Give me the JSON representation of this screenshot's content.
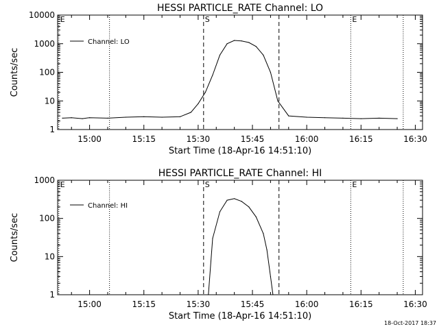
{
  "chart_data": [
    {
      "type": "line",
      "title": "HESSI PARTICLE_RATE Channel: LO",
      "xlabel": "Start Time (18-Apr-16 14:51:10)",
      "ylabel": "Counts/sec",
      "yscale": "log",
      "ylim": [
        1,
        10000
      ],
      "y_ticks": [
        "1",
        "10",
        "100",
        "1000",
        "10000"
      ],
      "xlim": [
        "14:51:10",
        "16:32:00"
      ],
      "x_ticks": [
        "15:00",
        "15:15",
        "15:30",
        "15:45",
        "16:00",
        "16:15",
        "16:30"
      ],
      "legend": {
        "position": "top-left",
        "label": "Channel: LO"
      },
      "markers": [
        {
          "time": "14:51:30",
          "label": "E",
          "style": "dotted"
        },
        {
          "time": "15:05:30",
          "label": "",
          "style": "dotted"
        },
        {
          "time": "15:31:30",
          "label": "S",
          "style": "dashed"
        },
        {
          "time": "15:52:20",
          "label": "",
          "style": "dashed"
        },
        {
          "time": "16:12:10",
          "label": "E",
          "style": "dotted"
        },
        {
          "time": "16:26:40",
          "label": "",
          "style": "dotted"
        }
      ],
      "series": [
        {
          "name": "Channel: LO",
          "x": [
            "14:52:30",
            "14:55:00",
            "14:58:00",
            "15:00:00",
            "15:05:00",
            "15:10:00",
            "15:15:00",
            "15:20:00",
            "15:25:00",
            "15:28:00",
            "15:30:00",
            "15:32:00",
            "15:34:00",
            "15:36:00",
            "15:38:00",
            "15:40:00",
            "15:42:00",
            "15:44:00",
            "15:46:00",
            "15:48:00",
            "15:50:00",
            "15:52:00",
            "15:55:00",
            "16:00:00",
            "16:05:00",
            "16:10:00",
            "16:15:00",
            "16:20:00",
            "16:25:00"
          ],
          "y": [
            2.5,
            2.6,
            2.4,
            2.6,
            2.5,
            2.7,
            2.8,
            2.7,
            2.8,
            4,
            8,
            20,
            80,
            400,
            1000,
            1300,
            1250,
            1100,
            800,
            400,
            100,
            10,
            3,
            2.7,
            2.6,
            2.5,
            2.4,
            2.5,
            2.4
          ]
        }
      ]
    },
    {
      "type": "line",
      "title": "HESSI PARTICLE_RATE Channel: HI",
      "xlabel": "Start Time (18-Apr-16 14:51:10)",
      "ylabel": "Counts/sec",
      "yscale": "log",
      "ylim": [
        1,
        1000
      ],
      "y_ticks": [
        "1",
        "10",
        "100",
        "1000"
      ],
      "xlim": [
        "14:51:10",
        "16:32:00"
      ],
      "x_ticks": [
        "15:00",
        "15:15",
        "15:30",
        "15:45",
        "16:00",
        "16:15",
        "16:30"
      ],
      "legend": {
        "position": "top-left",
        "label": "Channel: HI"
      },
      "markers": [
        {
          "time": "14:51:30",
          "label": "E",
          "style": "dotted"
        },
        {
          "time": "15:05:30",
          "label": "",
          "style": "dotted"
        },
        {
          "time": "15:31:30",
          "label": "S",
          "style": "dashed"
        },
        {
          "time": "15:52:20",
          "label": "",
          "style": "dashed"
        },
        {
          "time": "16:12:10",
          "label": "E",
          "style": "dotted"
        },
        {
          "time": "16:26:40",
          "label": "",
          "style": "dotted"
        }
      ],
      "series": [
        {
          "name": "Channel: HI",
          "x": [
            "15:32:50",
            "15:34:00",
            "15:36:00",
            "15:38:00",
            "15:40:00",
            "15:42:00",
            "15:44:00",
            "15:46:00",
            "15:48:00",
            "15:49:00",
            "15:50:00",
            "15:50:40"
          ],
          "y": [
            1,
            30,
            150,
            300,
            330,
            280,
            200,
            110,
            40,
            15,
            3,
            1
          ]
        }
      ]
    }
  ],
  "footer": {
    "timestamp": "18-Oct-2017 18:37"
  }
}
